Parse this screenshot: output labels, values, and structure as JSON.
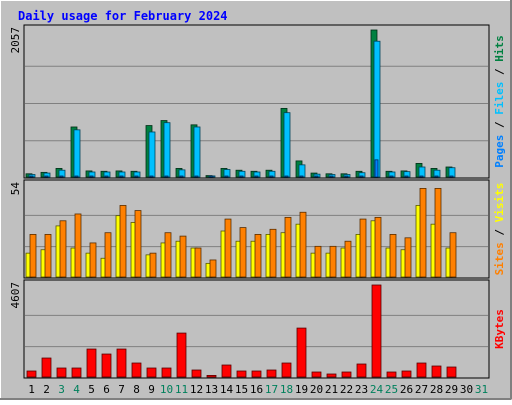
{
  "colors": {
    "background": "#c0c0c0",
    "plot": "#c0c0c0",
    "grid": "#808080",
    "title": "#0000ff",
    "hits": "#008040",
    "files": "#00c0ff",
    "pages": "#0080ff",
    "visits": "#ffff00",
    "sites": "#ff8000",
    "kbytes": "#ff0000",
    "weekend_day_label": "#00805c",
    "weekday_label": "#000000"
  },
  "chart_data": {
    "type": "bar",
    "title": "Daily usage for February 2024",
    "x": {
      "labels": [
        "1",
        "2",
        "3",
        "4",
        "5",
        "6",
        "7",
        "8",
        "9",
        "10",
        "11",
        "12",
        "13",
        "14",
        "15",
        "16",
        "17",
        "18",
        "19",
        "20",
        "21",
        "22",
        "23",
        "24",
        "25",
        "26",
        "27",
        "28",
        "29",
        "30",
        "31"
      ],
      "weekend": [
        3,
        4,
        10,
        11,
        17,
        18,
        24,
        25,
        31
      ]
    },
    "panels": [
      {
        "name": "hits_files_pages",
        "ymax_label": "2057",
        "ymax": 2057,
        "legend_right": [
          {
            "text": "Pages",
            "color_key": "pages"
          },
          {
            "text": " / ",
            "color_key": "weekday_label"
          },
          {
            "text": "Files",
            "color_key": "files"
          },
          {
            "text": " / ",
            "color_key": "weekday_label"
          },
          {
            "text": "Hits",
            "color_key": "hits"
          }
        ],
        "series": [
          {
            "name": "Hits",
            "color_key": "hits",
            "values": [
              45,
              65,
              120,
              700,
              85,
              80,
              85,
              80,
              720,
              790,
              120,
              730,
              20,
              120,
              95,
              80,
              95,
              960,
              225,
              55,
              45,
              45,
              80,
              2057,
              80,
              85,
              190,
              120,
              140,
              0,
              0
            ]
          },
          {
            "name": "Files",
            "color_key": "files",
            "values": [
              35,
              55,
              95,
              660,
              70,
              70,
              70,
              70,
              630,
              760,
              100,
              700,
              15,
              105,
              80,
              70,
              80,
              900,
              170,
              40,
              35,
              35,
              60,
              1900,
              70,
              75,
              140,
              95,
              130,
              0,
              0
            ]
          },
          {
            "name": "Pages",
            "color_key": "pages",
            "values": [
              5,
              5,
              8,
              10,
              5,
              5,
              5,
              5,
              8,
              10,
              6,
              8,
              2,
              6,
              5,
              5,
              5,
              10,
              8,
              3,
              3,
              3,
              6,
              240,
              5,
              5,
              8,
              6,
              6,
              0,
              0
            ]
          }
        ]
      },
      {
        "name": "visits_sites",
        "ymax_label": "54",
        "ymax": 54,
        "legend_right": [
          {
            "text": "Sites",
            "color_key": "sites"
          },
          {
            "text": " / ",
            "color_key": "weekday_label"
          },
          {
            "text": "Visits",
            "color_key": "visits"
          }
        ],
        "series": [
          {
            "name": "Visits",
            "color_key": "visits",
            "values": [
              14,
              16,
              30,
              17,
              14,
              11,
              36,
              32,
              13,
              20,
              21,
              17,
              8,
              27,
              21,
              21,
              25,
              26,
              31,
              14,
              14,
              17,
              25,
              33,
              17,
              16,
              42,
              31,
              17,
              0,
              0
            ]
          },
          {
            "name": "Sites",
            "color_key": "sites",
            "values": [
              25,
              25,
              33,
              37,
              20,
              26,
              42,
              39,
              14,
              26,
              24,
              17,
              10,
              34,
              29,
              25,
              28,
              35,
              38,
              18,
              18,
              21,
              34,
              35,
              25,
              23,
              52,
              52,
              26,
              0,
              0
            ]
          }
        ]
      },
      {
        "name": "kbytes",
        "ymax_label": "4607",
        "ymax": 4607,
        "legend_right": [
          {
            "text": "KBytes",
            "color_key": "kbytes"
          }
        ],
        "series": [
          {
            "name": "KBytes",
            "color_key": "kbytes",
            "values": [
              300,
              950,
              450,
              450,
              1400,
              1150,
              1400,
              700,
              450,
              450,
              2200,
              350,
              80,
              600,
              300,
              300,
              350,
              700,
              2450,
              250,
              150,
              250,
              650,
              4607,
              250,
              300,
              700,
              550,
              500,
              0,
              0
            ]
          }
        ]
      }
    ]
  }
}
